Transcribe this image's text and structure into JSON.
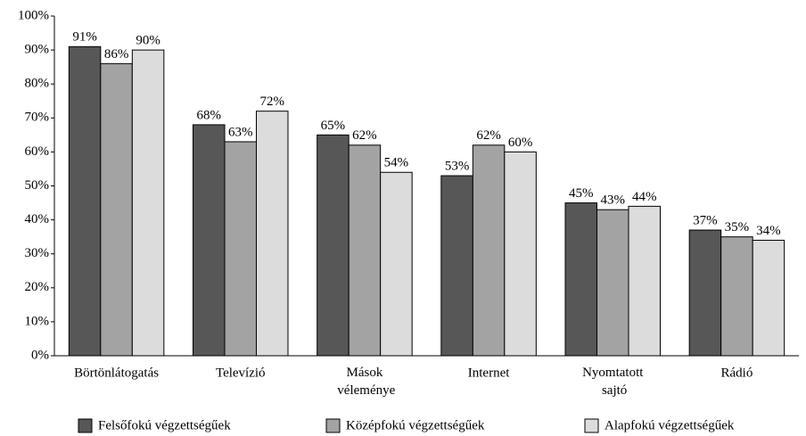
{
  "chart_data": {
    "type": "bar",
    "categories": [
      "Börtönlátogatás",
      "Televízió",
      "Mások véleménye",
      "Internet",
      "Nyomtatott sajtó",
      "Rádió"
    ],
    "series": [
      {
        "name": "Felsőfokú végzettségűek",
        "color": "#575757",
        "values": [
          91,
          68,
          65,
          53,
          45,
          37
        ],
        "value_labels": [
          "91%",
          "68%",
          "65%",
          "53%",
          "45%",
          "37%"
        ]
      },
      {
        "name": "Középfokú végzettségűek",
        "color": "#a3a3a3",
        "values": [
          86,
          63,
          62,
          62,
          43,
          35
        ],
        "value_labels": [
          "86%",
          "63%",
          "62%",
          "62%",
          "43%",
          "35%"
        ]
      },
      {
        "name": "Alapfokú végzettségűek",
        "color": "#dcdcdc",
        "values": [
          90,
          72,
          54,
          60,
          44,
          34
        ],
        "value_labels": [
          "90%",
          "72%",
          "54%",
          "60%",
          "44%",
          "34%"
        ]
      }
    ],
    "ylim": [
      0,
      100
    ],
    "yticks": [
      {
        "value": 0,
        "label": "0%"
      },
      {
        "value": 10,
        "label": "10%"
      },
      {
        "value": 20,
        "label": "20%"
      },
      {
        "value": 30,
        "label": "30%"
      },
      {
        "value": 40,
        "label": "40%"
      },
      {
        "value": 50,
        "label": "50%"
      },
      {
        "value": 60,
        "label": "60%"
      },
      {
        "value": 70,
        "label": "70%"
      },
      {
        "value": 80,
        "label": "80%"
      },
      {
        "value": 90,
        "label": "90%"
      },
      {
        "value": 100,
        "label": "100%"
      }
    ],
    "grid": false,
    "legend": "bottom"
  }
}
